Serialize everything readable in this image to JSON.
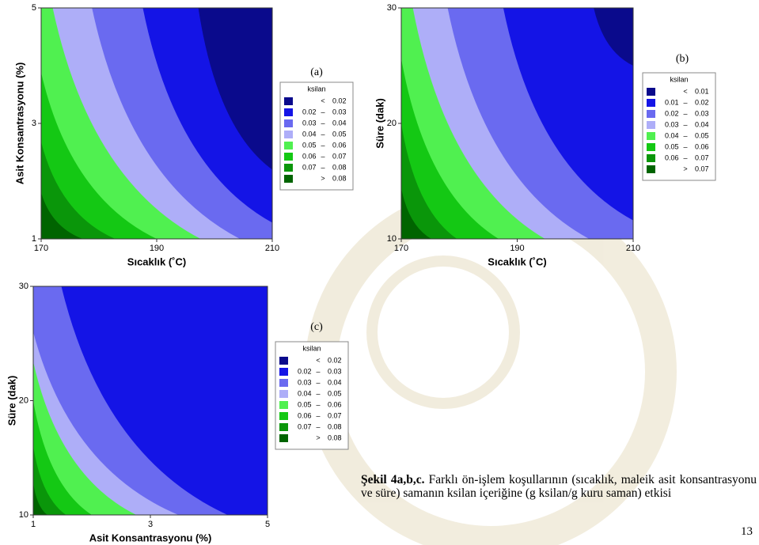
{
  "figures": [
    {
      "label": "(a)",
      "x_label": "Sıcaklık (˚C)",
      "y_label": "Asit Konsantrasyonu (%)",
      "xlim": [
        170,
        210
      ],
      "xticks": [
        170,
        190,
        210
      ],
      "ylim": [
        1,
        5
      ],
      "yticks": [
        1,
        3,
        5
      ],
      "legend": {
        "title": "ksilan",
        "rows": [
          {
            "color": "#0a0a8c",
            "symbol": "<",
            "high": 0.02
          },
          {
            "color": "#1414e6",
            "low": 0.02,
            "symbol": "–",
            "high": 0.03
          },
          {
            "color": "#6a6af0",
            "low": 0.03,
            "symbol": "–",
            "high": 0.04
          },
          {
            "color": "#aeaef8",
            "low": 0.04,
            "symbol": "–",
            "high": 0.05
          },
          {
            "color": "#50f050",
            "low": 0.05,
            "symbol": "–",
            "high": 0.06
          },
          {
            "color": "#14c814",
            "low": 0.06,
            "symbol": "–",
            "high": 0.07
          },
          {
            "color": "#0a960a",
            "low": 0.07,
            "symbol": "–",
            "high": 0.08
          },
          {
            "color": "#006400",
            "symbol": ">",
            "low": 0.08
          }
        ]
      }
    },
    {
      "label": "(b)",
      "x_label": "Sıcaklık (˚C)",
      "y_label": "Süre (dak)",
      "xlim": [
        170,
        210
      ],
      "xticks": [
        170,
        190,
        210
      ],
      "ylim": [
        10,
        30
      ],
      "yticks": [
        10,
        20,
        30
      ],
      "legend": {
        "title": "ksilan",
        "rows": [
          {
            "color": "#0a0a8c",
            "symbol": "<",
            "high": 0.01
          },
          {
            "color": "#1414e6",
            "low": 0.01,
            "symbol": "–",
            "high": 0.02
          },
          {
            "color": "#6a6af0",
            "low": 0.02,
            "symbol": "–",
            "high": 0.03
          },
          {
            "color": "#aeaef8",
            "low": 0.03,
            "symbol": "–",
            "high": 0.04
          },
          {
            "color": "#50f050",
            "low": 0.04,
            "symbol": "–",
            "high": 0.05
          },
          {
            "color": "#14c814",
            "low": 0.05,
            "symbol": "–",
            "high": 0.06
          },
          {
            "color": "#0a960a",
            "low": 0.06,
            "symbol": "–",
            "high": 0.07
          },
          {
            "color": "#006400",
            "symbol": ">",
            "low": 0.07
          }
        ]
      }
    },
    {
      "label": "(c)",
      "x_label": "Asit Konsantrasyonu (%)",
      "y_label": "Süre (dak)",
      "xlim": [
        1,
        5
      ],
      "xticks": [
        1,
        3,
        5
      ],
      "ylim": [
        10,
        30
      ],
      "yticks": [
        10,
        20,
        30
      ],
      "legend": {
        "title": "ksilan",
        "rows": [
          {
            "color": "#0a0a8c",
            "symbol": "<",
            "high": 0.02
          },
          {
            "color": "#1414e6",
            "low": 0.02,
            "symbol": "–",
            "high": 0.03
          },
          {
            "color": "#6a6af0",
            "low": 0.03,
            "symbol": "–",
            "high": 0.04
          },
          {
            "color": "#aeaef8",
            "low": 0.04,
            "symbol": "–",
            "high": 0.05
          },
          {
            "color": "#50f050",
            "low": 0.05,
            "symbol": "–",
            "high": 0.06
          },
          {
            "color": "#14c814",
            "low": 0.06,
            "symbol": "–",
            "high": 0.07
          },
          {
            "color": "#0a960a",
            "low": 0.07,
            "symbol": "–",
            "high": 0.08
          },
          {
            "color": "#006400",
            "symbol": ">",
            "low": 0.08
          }
        ]
      }
    }
  ],
  "caption": {
    "label": "Şekil 4a,b,c.",
    "text": "Farklı ön-işlem koşullarının (sıcaklık, maleik asit konsantrasyonu ve süre) samanın ksilan içeriğine (g ksilan/g kuru saman) etkisi"
  },
  "page_number": "13"
}
